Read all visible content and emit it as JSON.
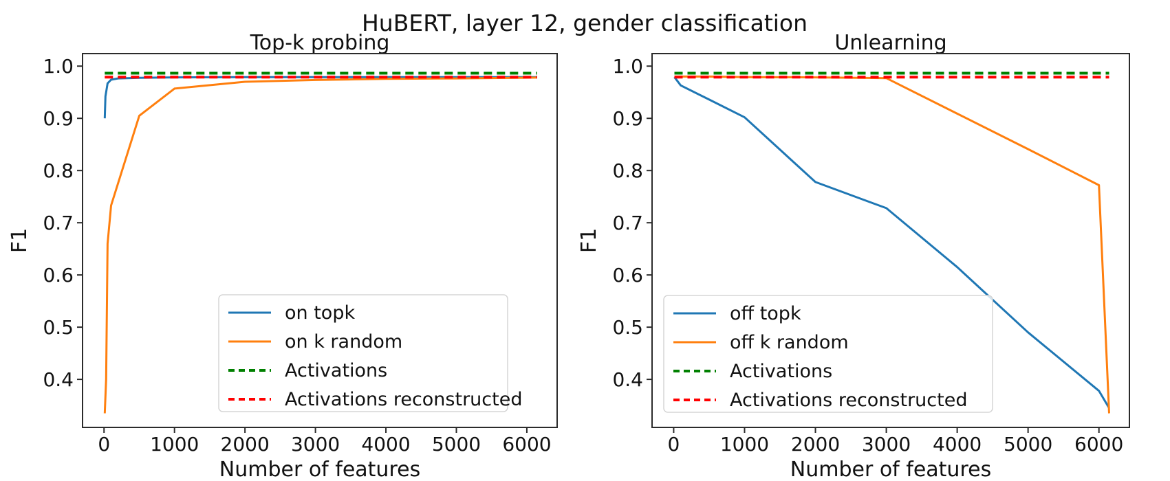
{
  "figure": {
    "suptitle": "HuBERT, layer 12, gender classification"
  },
  "colors": {
    "blue": "#1f77b4",
    "orange": "#ff7f0e",
    "green": "#008000",
    "red": "#ff0000",
    "spine": "#2b2b2b",
    "legend_border": "#d5d5d5"
  },
  "chart_data": [
    {
      "type": "line",
      "title": "Top-k probing",
      "xlabel": "Number of features",
      "ylabel": "F1",
      "xlim": [
        -305,
        6430
      ],
      "ylim": [
        0.308,
        1.024
      ],
      "grid": false,
      "xticks": [
        0,
        1000,
        2000,
        3000,
        4000,
        5000,
        6000
      ],
      "xtick_labels": [
        "0",
        "1000",
        "2000",
        "3000",
        "4000",
        "5000",
        "6000"
      ],
      "yticks": [
        0.4,
        0.5,
        0.6,
        0.7,
        0.8,
        0.9,
        1.0
      ],
      "ytick_labels": [
        "0.4",
        "0.5",
        "0.6",
        "0.7",
        "0.8",
        "0.9",
        "1.0"
      ],
      "legend_location": "lower center",
      "series": [
        {
          "name": "on topk",
          "color": "#1f77b4",
          "style": "solid",
          "x": [
            10,
            20,
            50,
            100,
            200,
            500,
            1000,
            2000,
            3000,
            4000,
            5000,
            6144
          ],
          "y": [
            0.9,
            0.942,
            0.967,
            0.974,
            0.9765,
            0.9775,
            0.9785,
            0.979,
            0.979,
            0.979,
            0.979,
            0.979
          ]
        },
        {
          "name": "on k random",
          "color": "#ff7f0e",
          "style": "solid",
          "x": [
            10,
            30,
            50,
            100,
            500,
            1000,
            2000,
            3000,
            4000,
            5000,
            6144
          ],
          "y": [
            0.335,
            0.4,
            0.66,
            0.733,
            0.905,
            0.957,
            0.97,
            0.9735,
            0.9755,
            0.9765,
            0.978
          ]
        },
        {
          "name": "Activations",
          "color": "#008000",
          "style": "dashed",
          "x": [
            10,
            6144
          ],
          "y": [
            0.9865,
            0.9865
          ]
        },
        {
          "name": "Activations reconstructed",
          "color": "#ff0000",
          "style": "dashed",
          "x": [
            10,
            6144
          ],
          "y": [
            0.979,
            0.979
          ]
        }
      ]
    },
    {
      "type": "line",
      "title": "Unlearning",
      "xlabel": "Number of features",
      "ylabel": "F1",
      "xlim": [
        -305,
        6430
      ],
      "ylim": [
        0.308,
        1.024
      ],
      "grid": false,
      "xticks": [
        0,
        1000,
        2000,
        3000,
        4000,
        5000,
        6000
      ],
      "xtick_labels": [
        "0",
        "1000",
        "2000",
        "3000",
        "4000",
        "5000",
        "6000"
      ],
      "yticks": [
        0.4,
        0.5,
        0.6,
        0.7,
        0.8,
        0.9,
        1.0
      ],
      "ytick_labels": [
        "0.4",
        "0.5",
        "0.6",
        "0.7",
        "0.8",
        "0.9",
        "1.0"
      ],
      "legend_location": "lower left",
      "series": [
        {
          "name": "off topk",
          "color": "#1f77b4",
          "style": "solid",
          "x": [
            10,
            100,
            500,
            1000,
            2000,
            3000,
            4000,
            5000,
            6000,
            6144
          ],
          "y": [
            0.979,
            0.963,
            0.936,
            0.902,
            0.778,
            0.728,
            0.615,
            0.49,
            0.378,
            0.345
          ]
        },
        {
          "name": "off k random",
          "color": "#ff7f0e",
          "style": "solid",
          "x": [
            10,
            500,
            1000,
            2000,
            3000,
            4000,
            5000,
            6000,
            6144
          ],
          "y": [
            0.98,
            0.98,
            0.979,
            0.9785,
            0.977,
            0.909,
            0.841,
            0.772,
            0.335
          ]
        },
        {
          "name": "Activations",
          "color": "#008000",
          "style": "dashed",
          "x": [
            10,
            6144
          ],
          "y": [
            0.9865,
            0.9865
          ]
        },
        {
          "name": "Activations reconstructed",
          "color": "#ff0000",
          "style": "dashed",
          "x": [
            10,
            6144
          ],
          "y": [
            0.979,
            0.979
          ]
        }
      ]
    }
  ]
}
